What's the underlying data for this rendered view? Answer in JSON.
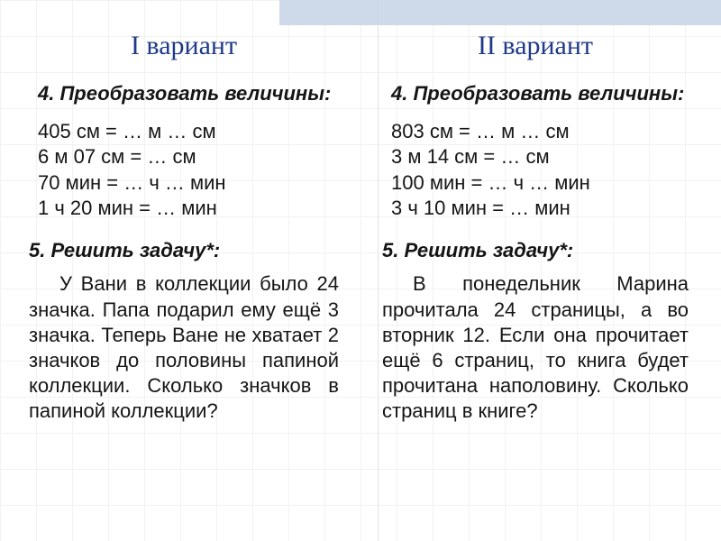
{
  "left": {
    "title": "I вариант",
    "task4_heading": "4. Преобразовать величины:",
    "conversions": "405 см = … м … см\n6 м 07 см = … см\n70 мин = … ч … мин\n1 ч 20 мин = … мин",
    "task5_heading": "5. Решить задачу*:",
    "problem": "У Вани в коллекции было 24 значка. Папа подарил ему ещё 3 значка. Теперь Ване не хватает 2 значков до половины папиной коллекции. Сколько значков в папиной коллекции?"
  },
  "right": {
    "title": "II вариант",
    "task4_heading": "4. Преобразовать величины:",
    "conversions": "803 см = … м … см\n3 м 14 см = … см\n100 мин = … ч … мин\n3 ч 10 мин = … мин",
    "task5_heading": "5. Решить задачу*:",
    "problem": "В понедельник Марина прочитала 24 страницы, а во вторник 12. Если она прочитает ещё 6 страниц, то книга будет прочитана наполовину. Сколько страниц в книге?"
  },
  "style": {
    "title_color": "#1f3b88",
    "text_color": "#151515",
    "band_color": "#c6d4e6",
    "grid_color": "#f1f3ef",
    "fontsize_title": 30,
    "fontsize_body": 22
  }
}
